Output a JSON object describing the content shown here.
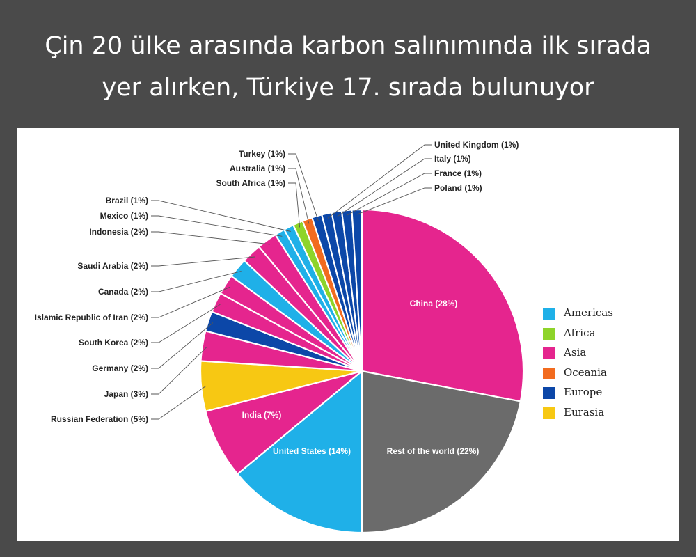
{
  "headline": {
    "line1": "Çin 20 ülke arasında karbon salınımında ilk sırada",
    "line2": "yer alırken, Türkiye 17. sırada bulunuyor"
  },
  "colors": {
    "Americas": "#1fb0e8",
    "Africa": "#8ed42a",
    "Asia": "#e5258e",
    "Oceania": "#f26b1f",
    "Europe": "#0c47a8",
    "Eurasia": "#f7c813",
    "Other": "#6b6b6b"
  },
  "chart_data": {
    "type": "pie",
    "legend_position": "right",
    "legend": [
      "Americas",
      "Africa",
      "Asia",
      "Oceania",
      "Europe",
      "Eurasia"
    ],
    "slices": [
      {
        "label": "China (28%)",
        "value": 28,
        "region": "Asia"
      },
      {
        "label": "Rest of the world (22%)",
        "value": 22,
        "region": "Other"
      },
      {
        "label": "United States (14%)",
        "value": 14,
        "region": "Americas"
      },
      {
        "label": "India (7%)",
        "value": 7,
        "region": "Asia"
      },
      {
        "label": "Russian Federation (5%)",
        "value": 5,
        "region": "Eurasia"
      },
      {
        "label": "Japan (3%)",
        "value": 3,
        "region": "Asia"
      },
      {
        "label": "Germany (2%)",
        "value": 2,
        "region": "Europe"
      },
      {
        "label": "South Korea (2%)",
        "value": 2,
        "region": "Asia"
      },
      {
        "label": "Islamic Republic of Iran (2%)",
        "value": 2,
        "region": "Asia"
      },
      {
        "label": "Canada (2%)",
        "value": 2,
        "region": "Americas"
      },
      {
        "label": "Saudi Arabia (2%)",
        "value": 2,
        "region": "Asia"
      },
      {
        "label": "Indonesia (2%)",
        "value": 2,
        "region": "Asia"
      },
      {
        "label": "Mexico (1%)",
        "value": 1,
        "region": "Americas"
      },
      {
        "label": "Brazil (1%)",
        "value": 1,
        "region": "Americas"
      },
      {
        "label": "South Africa (1%)",
        "value": 1,
        "region": "Africa"
      },
      {
        "label": "Australia (1%)",
        "value": 1,
        "region": "Oceania"
      },
      {
        "label": "Turkey (1%)",
        "value": 1,
        "region": "Europe"
      },
      {
        "label": "United Kingdom (1%)",
        "value": 1,
        "region": "Europe"
      },
      {
        "label": "Italy (1%)",
        "value": 1,
        "region": "Europe"
      },
      {
        "label": "France (1%)",
        "value": 1,
        "region": "Europe"
      },
      {
        "label": "Poland (1%)",
        "value": 1,
        "region": "Europe"
      }
    ]
  }
}
